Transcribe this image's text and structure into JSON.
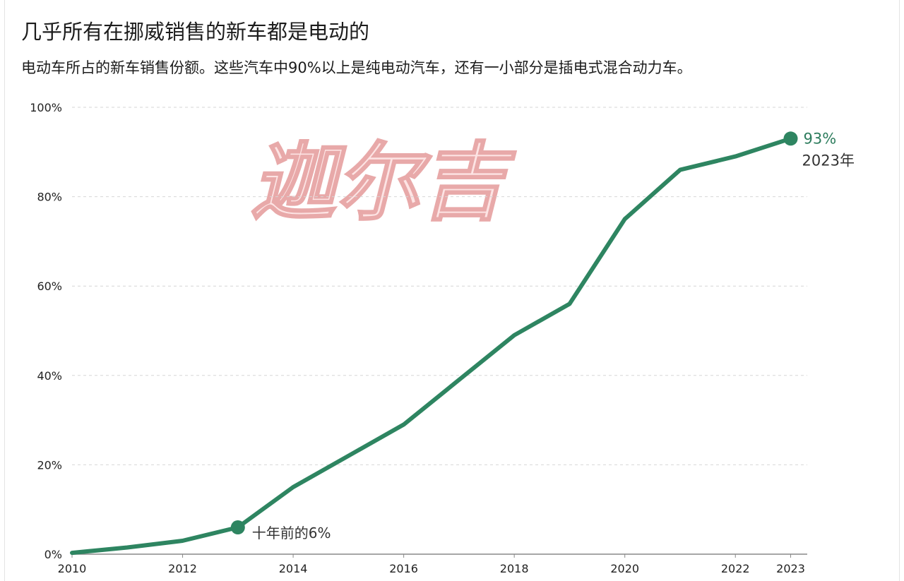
{
  "title": "几乎所有在挪威销售的新车都是电动的",
  "subtitle": "电动车所占的新车销售份额。这些汽车中90%以上是纯电动汽车，还有一小部分是插电式混合动力车。",
  "watermark": "迦尔吉",
  "colors": {
    "line": "#2e8561",
    "grid": "#d6d6d6",
    "end_label": "#2e7d5e"
  },
  "chart_data": {
    "type": "line",
    "x": [
      2010,
      2011,
      2012,
      2013,
      2014,
      2015,
      2016,
      2017,
      2018,
      2019,
      2020,
      2021,
      2022,
      2023
    ],
    "series": [
      {
        "values": [
          0.3,
          1.5,
          3,
          6,
          15,
          22,
          29,
          39,
          49,
          56,
          75,
          86,
          89,
          93
        ]
      }
    ],
    "xlim": [
      2010,
      2023.3
    ],
    "ylim": [
      0,
      100
    ],
    "x_ticks": [
      2010,
      2012,
      2014,
      2016,
      2018,
      2020,
      2022,
      2023
    ],
    "x_tick_labels": [
      "2010",
      "2012",
      "2014",
      "2016",
      "2018",
      "2020",
      "2022",
      "2023"
    ],
    "y_ticks": [
      0,
      20,
      40,
      60,
      80,
      100
    ],
    "y_tick_labels": [
      "0%",
      "20%",
      "40%",
      "60%",
      "80%",
      "100%"
    ],
    "grid": "horizontal-dashed",
    "annotations": {
      "start": {
        "x": 2013,
        "y": 6,
        "text": "十年前的6%"
      },
      "end": {
        "x": 2023,
        "y": 93,
        "value_text": "93%",
        "year_text": "2023年"
      }
    }
  }
}
